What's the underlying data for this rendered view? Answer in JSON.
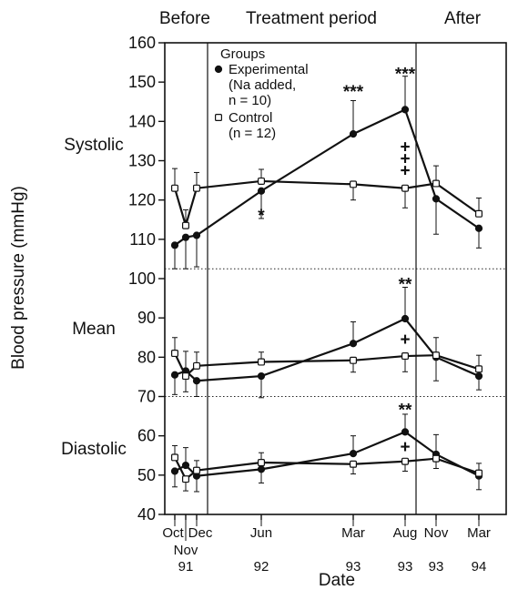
{
  "chart_data": {
    "type": "line",
    "xlabel": "Date",
    "ylabel": "Blood pressure (mmHg)",
    "ylim": [
      40,
      160
    ],
    "yticks": [
      40,
      50,
      60,
      70,
      80,
      90,
      100,
      110,
      120,
      130,
      140,
      150,
      160
    ],
    "period_labels": [
      "Before",
      "Treatment period",
      "After"
    ],
    "dates": [
      {
        "month": "Oct",
        "year": ""
      },
      {
        "month": "Nov",
        "year": "91"
      },
      {
        "month": "Dec",
        "year": ""
      },
      {
        "month": "Jun",
        "year": "92"
      },
      {
        "month": "Mar",
        "year": "93"
      },
      {
        "month": "Aug",
        "year": "93"
      },
      {
        "month": "Nov",
        "year": "93"
      },
      {
        "month": "Mar",
        "year": "94"
      }
    ],
    "legend": {
      "title": "Groups",
      "entries": [
        {
          "series": "experimental",
          "lines": [
            "Experimental",
            "(Na added,",
            "n = 10)"
          ]
        },
        {
          "series": "control",
          "lines": [
            "Control",
            "(n = 12)"
          ]
        }
      ]
    },
    "section_labels": [
      "Systolic",
      "Mean",
      "Diastolic"
    ],
    "divider_values": [
      102.5,
      70
    ],
    "panels": [
      {
        "label": "Systolic",
        "series": [
          {
            "key": "experimental",
            "marker": "filled-circle",
            "points": [
              [
                0,
                108.5,
                6
              ],
              [
                1,
                110.5,
                8
              ],
              [
                2,
                111,
                8
              ],
              [
                3,
                122.3,
                7
              ],
              [
                4,
                136.8,
                8.5
              ],
              [
                5,
                143,
                8.5
              ],
              [
                6,
                120.3,
                9
              ],
              [
                7,
                112.8,
                5
              ]
            ]
          },
          {
            "key": "control",
            "marker": "open-square",
            "points": [
              [
                0,
                123,
                5
              ],
              [
                1,
                113.5,
                4
              ],
              [
                2,
                123,
                4
              ],
              [
                3,
                124.8,
                3
              ],
              [
                4,
                124,
                4
              ],
              [
                5,
                123,
                5
              ],
              [
                6,
                124.2,
                4.5
              ],
              [
                7,
                116.5,
                4
              ]
            ]
          }
        ],
        "annotations": [
          {
            "date_index": 3,
            "value": 116,
            "text": "*"
          },
          {
            "date_index": 4,
            "value": 147.5,
            "text": "***"
          },
          {
            "date_index": 5,
            "value": 152,
            "text": "***"
          },
          {
            "date_index": 5,
            "value": 133.5,
            "text": "+"
          },
          {
            "date_index": 5,
            "value": 130.5,
            "text": "+"
          },
          {
            "date_index": 5,
            "value": 127.5,
            "text": "+"
          }
        ]
      },
      {
        "label": "Mean",
        "series": [
          {
            "key": "experimental",
            "marker": "filled-circle",
            "points": [
              [
                0,
                75.5,
                5
              ],
              [
                1,
                76.5,
                5
              ],
              [
                2,
                74,
                4
              ],
              [
                3,
                75.2,
                5.5
              ],
              [
                4,
                83.5,
                5.5
              ],
              [
                5,
                89.8,
                8
              ],
              [
                6,
                80,
                6
              ],
              [
                7,
                75.2,
                3.5
              ]
            ]
          },
          {
            "key": "control",
            "marker": "open-square",
            "points": [
              [
                0,
                81,
                4
              ],
              [
                1,
                75.2,
                4
              ],
              [
                2,
                77.8,
                3.5
              ],
              [
                3,
                78.8,
                2.5
              ],
              [
                4,
                79.2,
                3
              ],
              [
                5,
                80.3,
                4
              ],
              [
                6,
                80.5,
                4.5
              ],
              [
                7,
                77,
                3.5
              ]
            ]
          }
        ],
        "annotations": [
          {
            "date_index": 5,
            "value": 98.5,
            "text": "**"
          },
          {
            "date_index": 5,
            "value": 84.5,
            "text": "+"
          }
        ]
      },
      {
        "label": "Diastolic",
        "series": [
          {
            "key": "experimental",
            "marker": "filled-circle",
            "points": [
              [
                0,
                51,
                4
              ],
              [
                1,
                52.5,
                4.5
              ],
              [
                2,
                49.8,
                4
              ],
              [
                3,
                51.5,
                3.5
              ],
              [
                4,
                55.5,
                4.5
              ],
              [
                5,
                61,
                4.5
              ],
              [
                6,
                55.3,
                5
              ],
              [
                7,
                49.8,
                3.5
              ]
            ]
          },
          {
            "key": "control",
            "marker": "open-square",
            "points": [
              [
                0,
                54.5,
                3
              ],
              [
                1,
                49,
                3
              ],
              [
                2,
                51.2,
                2.5
              ],
              [
                3,
                53.2,
                2.5
              ],
              [
                4,
                52.8,
                2.5
              ],
              [
                5,
                53.5,
                2.5
              ],
              [
                6,
                54.2,
                2.5
              ],
              [
                7,
                50.5,
                2.5
              ]
            ]
          }
        ],
        "annotations": [
          {
            "date_index": 5,
            "value": 66.5,
            "text": "**"
          },
          {
            "date_index": 5,
            "value": 57.2,
            "text": "+"
          }
        ]
      }
    ]
  }
}
